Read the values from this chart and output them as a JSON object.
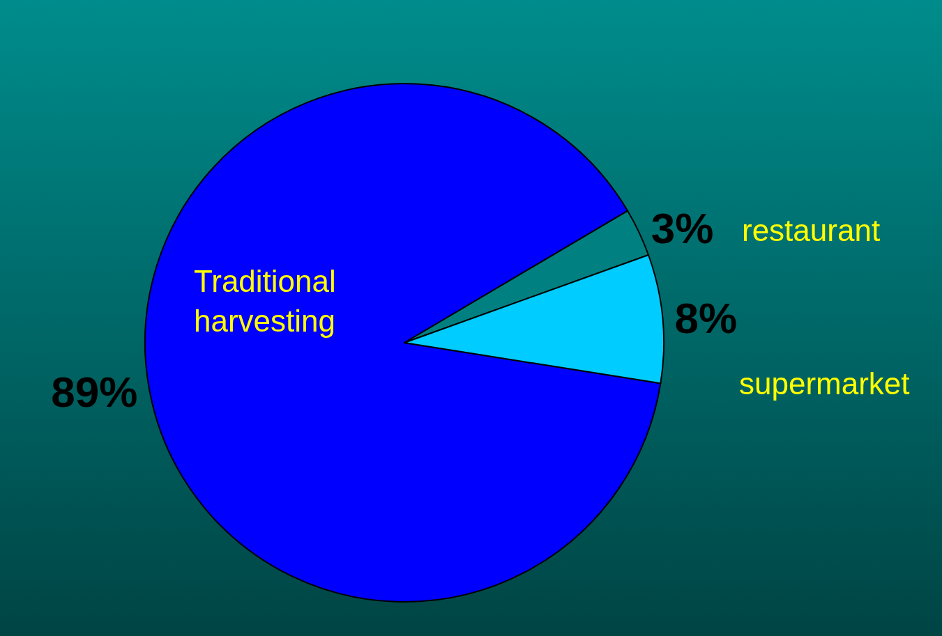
{
  "chart_data": {
    "type": "pie",
    "categories": [
      "Traditional harvesting",
      "restaurant",
      "supermarket"
    ],
    "values": [
      89,
      3,
      8
    ],
    "colors": [
      "#0000ff",
      "#008080",
      "#00ccff"
    ],
    "value_labels": [
      "89%",
      "3%",
      "8%"
    ],
    "legend": false
  }
}
